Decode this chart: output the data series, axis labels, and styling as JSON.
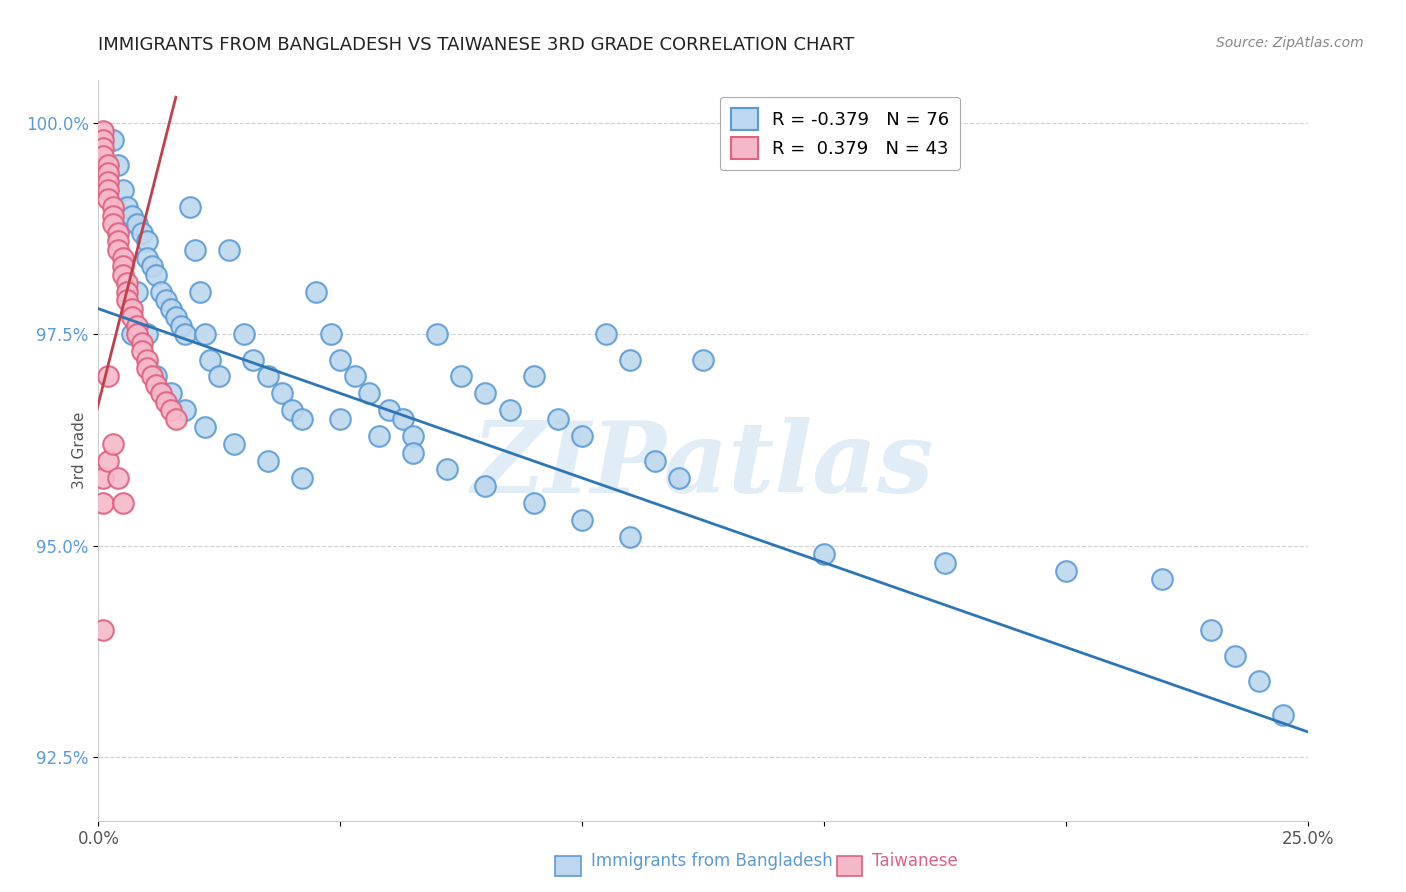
{
  "title": "IMMIGRANTS FROM BANGLADESH VS TAIWANESE 3RD GRADE CORRELATION CHART",
  "source": "Source: ZipAtlas.com",
  "xlabel_blue": "Immigrants from Bangladesh",
  "xlabel_pink": "Taiwanese",
  "ylabel": "3rd Grade",
  "watermark": "ZIPatlas",
  "xlim": [
    0.0,
    0.25
  ],
  "ylim": [
    0.9175,
    1.005
  ],
  "yticks": [
    0.925,
    0.95,
    0.975,
    1.0
  ],
  "ytick_labels": [
    "92.5%",
    "95.0%",
    "97.5%",
    "100.0%"
  ],
  "blue_color": "#BDD7EE",
  "blue_edge": "#5B9BD5",
  "pink_color": "#F4B8C9",
  "pink_edge": "#E06080",
  "line_blue": "#2E75B6",
  "line_pink": "#C0404A",
  "legend_blue_r": "R = -0.379",
  "legend_blue_n": "N = 76",
  "legend_pink_r": "R =  0.379",
  "legend_pink_n": "N = 43",
  "blue_line_x0": 0.0,
  "blue_line_y0": 0.978,
  "blue_line_x1": 0.25,
  "blue_line_y1": 0.928,
  "pink_line_x0": -0.003,
  "pink_line_y0": 0.96,
  "pink_line_x1": 0.016,
  "pink_line_y1": 1.003,
  "blue_x": [
    0.003,
    0.004,
    0.005,
    0.006,
    0.007,
    0.008,
    0.009,
    0.01,
    0.01,
    0.011,
    0.012,
    0.013,
    0.014,
    0.015,
    0.016,
    0.017,
    0.018,
    0.019,
    0.02,
    0.021,
    0.022,
    0.023,
    0.025,
    0.027,
    0.03,
    0.032,
    0.035,
    0.038,
    0.04,
    0.042,
    0.045,
    0.048,
    0.05,
    0.053,
    0.056,
    0.06,
    0.063,
    0.065,
    0.07,
    0.075,
    0.08,
    0.085,
    0.09,
    0.095,
    0.1,
    0.105,
    0.11,
    0.115,
    0.12,
    0.125,
    0.007,
    0.008,
    0.01,
    0.012,
    0.015,
    0.018,
    0.022,
    0.028,
    0.035,
    0.042,
    0.05,
    0.058,
    0.065,
    0.072,
    0.08,
    0.09,
    0.1,
    0.11,
    0.15,
    0.175,
    0.2,
    0.22,
    0.23,
    0.235,
    0.24,
    0.245
  ],
  "blue_y": [
    0.998,
    0.995,
    0.992,
    0.99,
    0.989,
    0.988,
    0.987,
    0.986,
    0.984,
    0.983,
    0.982,
    0.98,
    0.979,
    0.978,
    0.977,
    0.976,
    0.975,
    0.99,
    0.985,
    0.98,
    0.975,
    0.972,
    0.97,
    0.985,
    0.975,
    0.972,
    0.97,
    0.968,
    0.966,
    0.965,
    0.98,
    0.975,
    0.972,
    0.97,
    0.968,
    0.966,
    0.965,
    0.963,
    0.975,
    0.97,
    0.968,
    0.966,
    0.97,
    0.965,
    0.963,
    0.975,
    0.972,
    0.96,
    0.958,
    0.972,
    0.975,
    0.98,
    0.975,
    0.97,
    0.968,
    0.966,
    0.964,
    0.962,
    0.96,
    0.958,
    0.965,
    0.963,
    0.961,
    0.959,
    0.957,
    0.955,
    0.953,
    0.951,
    0.949,
    0.948,
    0.947,
    0.946,
    0.94,
    0.937,
    0.934,
    0.93
  ],
  "pink_x": [
    0.001,
    0.001,
    0.001,
    0.001,
    0.002,
    0.002,
    0.002,
    0.002,
    0.002,
    0.003,
    0.003,
    0.003,
    0.004,
    0.004,
    0.004,
    0.005,
    0.005,
    0.005,
    0.006,
    0.006,
    0.006,
    0.007,
    0.007,
    0.008,
    0.008,
    0.009,
    0.009,
    0.01,
    0.01,
    0.011,
    0.012,
    0.013,
    0.014,
    0.015,
    0.016,
    0.001,
    0.001,
    0.001,
    0.002,
    0.002,
    0.003,
    0.004,
    0.005
  ],
  "pink_y": [
    0.999,
    0.998,
    0.997,
    0.996,
    0.995,
    0.994,
    0.993,
    0.992,
    0.991,
    0.99,
    0.989,
    0.988,
    0.987,
    0.986,
    0.985,
    0.984,
    0.983,
    0.982,
    0.981,
    0.98,
    0.979,
    0.978,
    0.977,
    0.976,
    0.975,
    0.974,
    0.973,
    0.972,
    0.971,
    0.97,
    0.969,
    0.968,
    0.967,
    0.966,
    0.965,
    0.958,
    0.955,
    0.94,
    0.96,
    0.97,
    0.962,
    0.958,
    0.955
  ]
}
